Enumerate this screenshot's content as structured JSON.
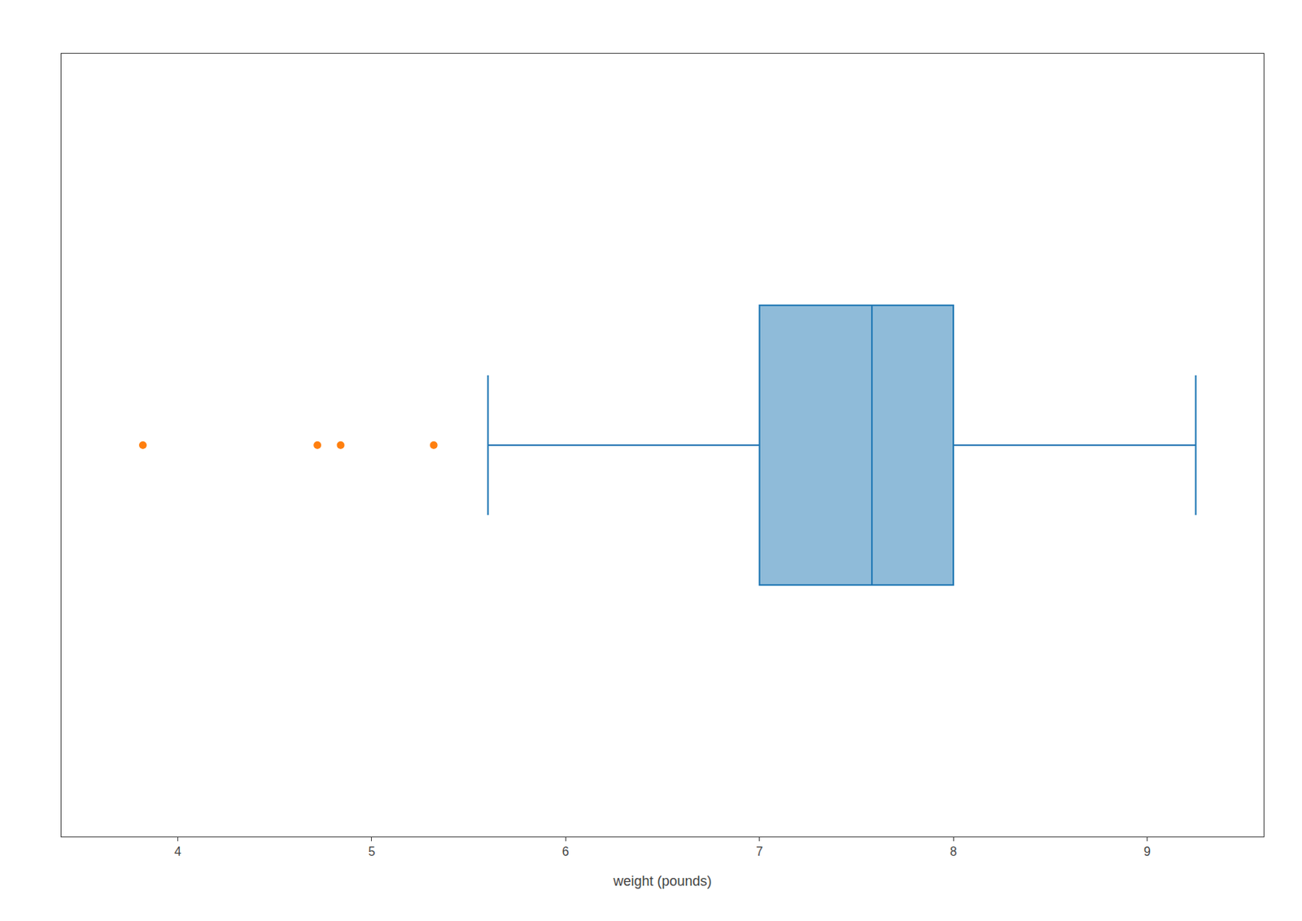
{
  "chart_data": {
    "type": "box",
    "orientation": "horizontal",
    "xlabel": "weight (pounds)",
    "q1": 7.0,
    "median": 7.58,
    "q3": 8.0,
    "whisker_low": 5.6,
    "whisker_high": 9.25,
    "outliers": [
      3.82,
      4.72,
      4.84,
      5.32
    ],
    "xlim": [
      3.4,
      9.6
    ],
    "xticks": [
      4,
      5,
      6,
      7,
      8,
      9
    ],
    "tick_labels": "x",
    "grid": false
  }
}
